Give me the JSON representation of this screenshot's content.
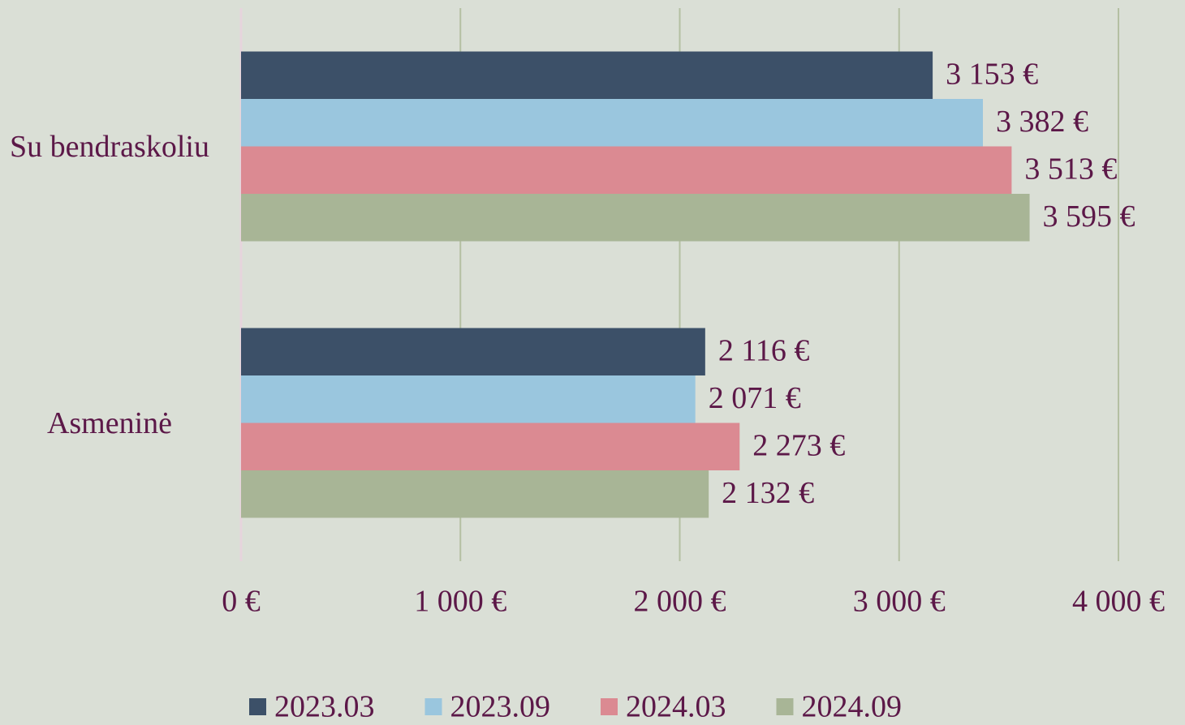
{
  "chart_data": {
    "type": "bar",
    "orientation": "horizontal",
    "categories": [
      "Su bendraskoliu",
      "Asmeninė"
    ],
    "series": [
      {
        "name": "2023.03",
        "color": "#3c5068",
        "values": [
          3153,
          2116
        ],
        "value_labels": [
          "3 153 €",
          "2 116 €"
        ]
      },
      {
        "name": "2023.09",
        "color": "#9ac6de",
        "values": [
          3382,
          2071
        ],
        "value_labels": [
          "3 382 €",
          "2 071 €"
        ]
      },
      {
        "name": "2024.03",
        "color": "#db8a92",
        "values": [
          3513,
          2273
        ],
        "value_labels": [
          "3 513 €",
          "2 273 €"
        ]
      },
      {
        "name": "2024.09",
        "color": "#a8b596",
        "values": [
          3595,
          2132
        ],
        "value_labels": [
          "3 595 €",
          "2 132 €"
        ]
      }
    ],
    "xlim": [
      0,
      4000
    ],
    "xticks": [
      {
        "value": 0,
        "label": "0 €"
      },
      {
        "value": 1000,
        "label": "1 000 €"
      },
      {
        "value": 2000,
        "label": "2 000 €"
      },
      {
        "value": 3000,
        "label": "3 000 €"
      },
      {
        "value": 4000,
        "label": "4 000 €"
      }
    ],
    "grid": true,
    "legend": "bottom"
  }
}
